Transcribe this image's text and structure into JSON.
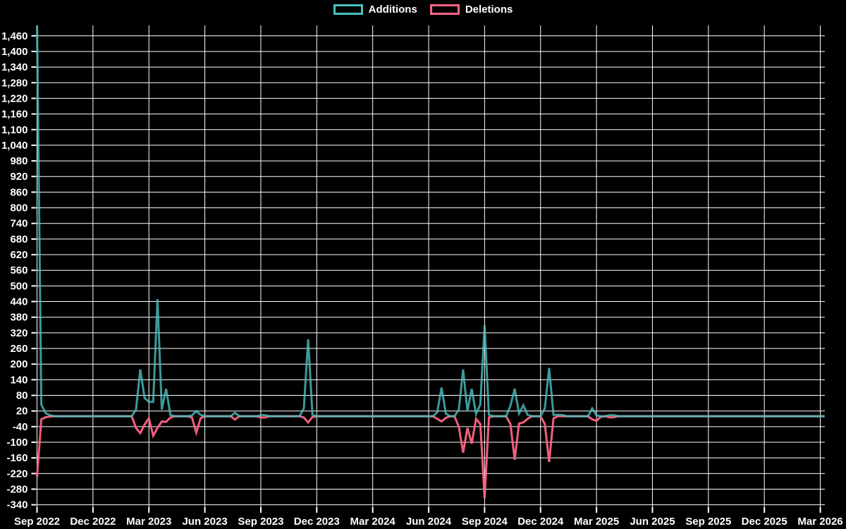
{
  "legend": {
    "items": [
      {
        "label": "Additions",
        "color": "#4bc0c0"
      },
      {
        "label": "Deletions",
        "color": "#ff6384"
      }
    ]
  },
  "colors": {
    "background": "#000000",
    "grid": "#ffffff",
    "text": "#ffffff",
    "additions": "#4bc0c0",
    "deletions": "#ff6384"
  },
  "chart_data": {
    "type": "line",
    "title": "",
    "xlabel": "",
    "ylabel": "",
    "legend_position": "top-center",
    "grid": true,
    "background_color": "#000000",
    "grid_color": "#ffffff",
    "text_color": "#ffffff",
    "x_tick_labels": [
      "Sep 2022",
      "Dec 2022",
      "Mar 2023",
      "Jun 2023",
      "Sep 2023",
      "Dec 2023",
      "Mar 2024",
      "Jun 2024",
      "Sep 2024",
      "Dec 2024",
      "Mar 2025",
      "Jun 2025",
      "Sep 2025",
      "Dec 2025",
      "Mar 2026"
    ],
    "y_ticks": [
      -340,
      -280,
      -220,
      -160,
      -100,
      -40,
      20,
      80,
      140,
      200,
      260,
      320,
      380,
      440,
      500,
      560,
      620,
      680,
      740,
      800,
      860,
      920,
      980,
      1040,
      1100,
      1160,
      1220,
      1280,
      1340,
      1400,
      1460
    ],
    "y_tick_labels": [
      "-340",
      "-280",
      "-220",
      "-160",
      "-100",
      "-40",
      "20",
      "80",
      "140",
      "200",
      "260",
      "320",
      "380",
      "440",
      "500",
      "560",
      "620",
      "680",
      "740",
      "800",
      "860",
      "920",
      "980",
      "1,040",
      "1,100",
      "1,160",
      "1,220",
      "1,280",
      "1,340",
      "1,400",
      "1,460"
    ],
    "ylim": [
      -349,
      1500
    ],
    "x_unit": "week",
    "weeks_total": 184,
    "weeks_per_quarter": 13,
    "first_point_clipped_at_top": true,
    "series": [
      {
        "name": "Additions",
        "color": "#4bc0c0",
        "default_value": 0,
        "nonzero": {
          "0": 1520,
          "1": 45,
          "2": 12,
          "3": 4,
          "23": 25,
          "24": 180,
          "25": 70,
          "26": 55,
          "27": 55,
          "28": 450,
          "29": 25,
          "30": 105,
          "31": 5,
          "36": 3,
          "37": 20,
          "38": 5,
          "46": 13,
          "52": 4,
          "53": 4,
          "62": 30,
          "63": 295,
          "64": 5,
          "93": 15,
          "94": 110,
          "95": 10,
          "98": 25,
          "99": 180,
          "100": 20,
          "101": 105,
          "102": 8,
          "103": 45,
          "104": 350,
          "105": 5,
          "110": 40,
          "111": 105,
          "112": 10,
          "113": 42,
          "114": 5,
          "118": 30,
          "119": 185,
          "120": 5,
          "121": 5,
          "122": 5,
          "129": 30,
          "130": 3,
          "133": 4,
          "134": 4
        }
      },
      {
        "name": "Deletions",
        "color": "#ff6384",
        "default_value": 0,
        "nonzero": {
          "0": -234,
          "1": -12,
          "2": -4,
          "3": -1,
          "23": -45,
          "24": -65,
          "25": -32,
          "26": -8,
          "27": -75,
          "28": -45,
          "29": -20,
          "30": -22,
          "31": -5,
          "36": -5,
          "37": -63,
          "38": -8,
          "46": -13,
          "52": -5,
          "53": -5,
          "62": -5,
          "63": -24,
          "64": -3,
          "93": -10,
          "94": -20,
          "95": -6,
          "98": -40,
          "99": -140,
          "100": -45,
          "101": -105,
          "102": -10,
          "103": -30,
          "104": -315,
          "105": -5,
          "110": -30,
          "111": -167,
          "112": -28,
          "113": -24,
          "114": -10,
          "118": -30,
          "119": -176,
          "120": -8,
          "129": -12,
          "130": -18,
          "131": -2,
          "133": -4,
          "134": -4
        }
      }
    ]
  }
}
